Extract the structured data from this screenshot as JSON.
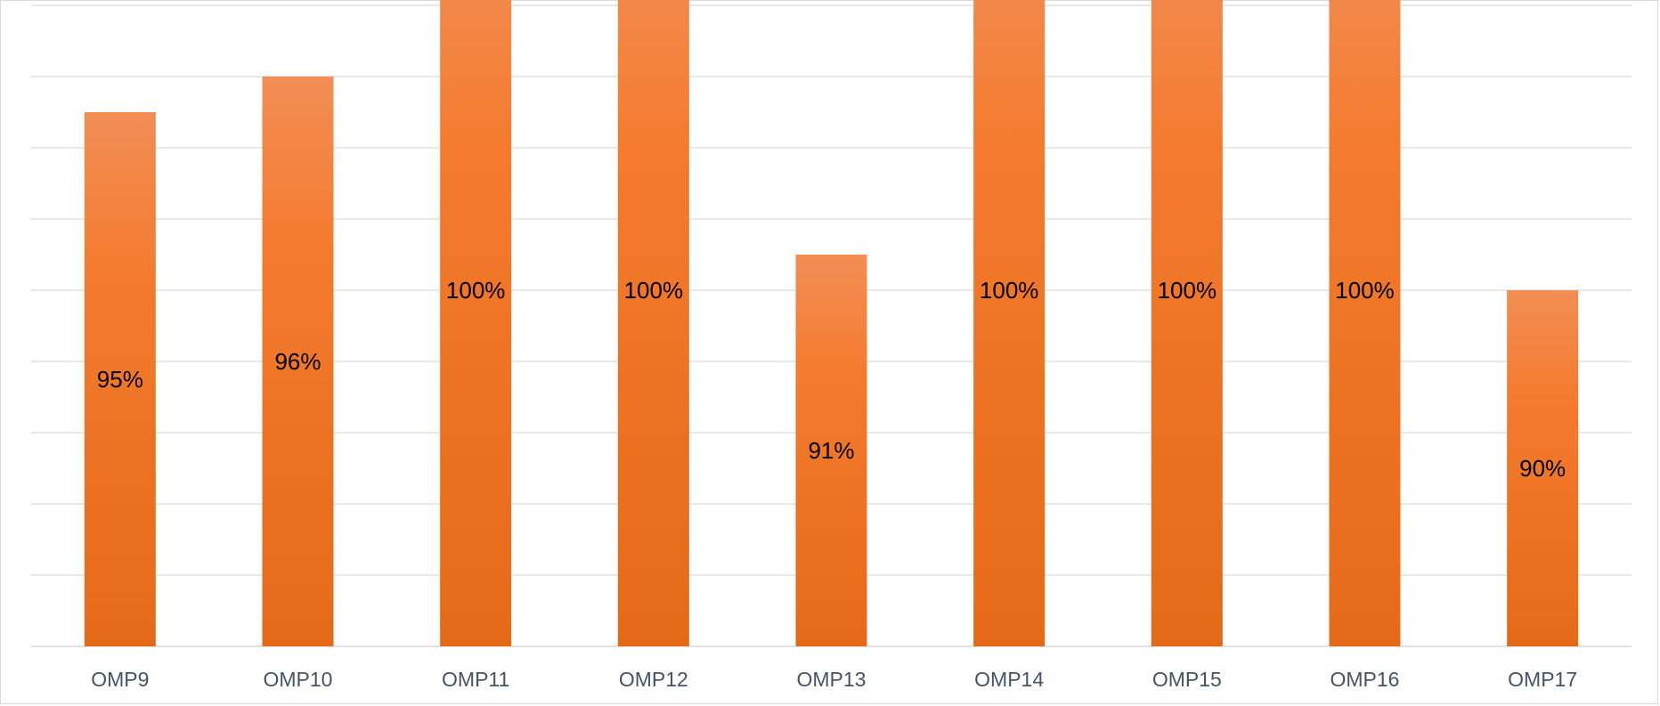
{
  "chart_data": {
    "type": "bar",
    "categories": [
      "OMP9",
      "OMP10",
      "OMP11",
      "OMP12",
      "OMP13",
      "OMP14",
      "OMP15",
      "OMP16",
      "OMP17"
    ],
    "values": [
      95,
      96,
      100,
      100,
      91,
      100,
      100,
      100,
      90
    ],
    "data_labels": [
      "95%",
      "96%",
      "100%",
      "100%",
      "91%",
      "100%",
      "100%",
      "100%",
      "90%"
    ],
    "ylim": [
      80,
      104
    ],
    "grid": true,
    "legend": "none",
    "colors": {
      "bar_top": "#f28e55",
      "bar_bottom": "#e56a18",
      "grid": "#d9d9d9",
      "axis_text": "#44546a"
    }
  }
}
